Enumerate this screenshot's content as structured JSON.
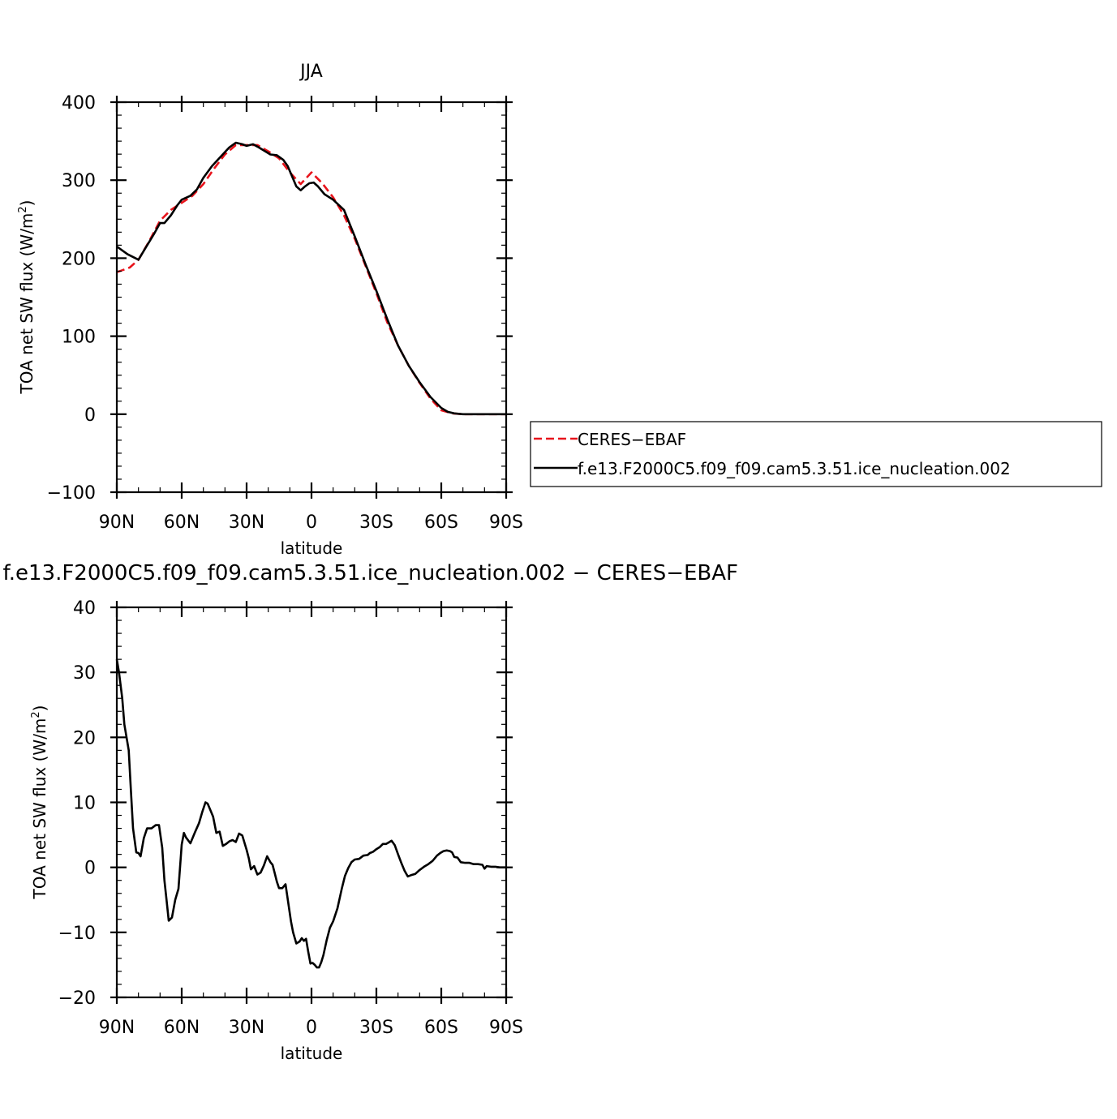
{
  "chart_data": [
    {
      "type": "line",
      "title": "JJA",
      "xlabel": "latitude",
      "ylabel_main": "TOA net SW flux (W/m",
      "ylabel_sup": "2",
      "ylabel_close": ")",
      "xlim": [
        90,
        -90
      ],
      "ylim": [
        -100,
        400
      ],
      "x_ticks": [
        {
          "value": 90,
          "label": "90N"
        },
        {
          "value": 60,
          "label": "60N"
        },
        {
          "value": 30,
          "label": "30N"
        },
        {
          "value": 0,
          "label": "0"
        },
        {
          "value": -30,
          "label": "30S"
        },
        {
          "value": -60,
          "label": "60S"
        },
        {
          "value": -90,
          "label": "90S"
        }
      ],
      "y_ticks": [
        {
          "value": 400,
          "label": "400"
        },
        {
          "value": 300,
          "label": "300"
        },
        {
          "value": 200,
          "label": "200"
        },
        {
          "value": 100,
          "label": "100"
        },
        {
          "value": 0,
          "label": "0"
        },
        {
          "value": -100,
          "label": "−100"
        }
      ],
      "series": [
        {
          "name": "CERES−EBAF",
          "color": "#e8141c",
          "dash": true,
          "x": [
            90,
            84,
            80,
            75,
            70,
            65,
            60,
            55,
            50,
            45,
            40,
            35,
            30,
            25,
            20,
            15,
            10,
            5,
            0,
            -5,
            -10,
            -15,
            -20,
            -25,
            -30,
            -35,
            -40,
            -45,
            -50,
            -55,
            -60,
            -65,
            -70,
            -75,
            -80,
            -85,
            -90
          ],
          "y": [
            182,
            188,
            198,
            222,
            248,
            262,
            271,
            280,
            295,
            315,
            333,
            345,
            345,
            345,
            337,
            328,
            310,
            295,
            310,
            296,
            278,
            255,
            225,
            190,
            155,
            118,
            88,
            62,
            40,
            20,
            5,
            1,
            0,
            0,
            0,
            0,
            0
          ]
        },
        {
          "name": "f.e13.F2000C5.f09_f09.cam5.3.51.ice_nucleation.002",
          "color": "#000000",
          "dash": false,
          "x": [
            90,
            85,
            80,
            77,
            73,
            70,
            68,
            65,
            62,
            60,
            56,
            53,
            50,
            46,
            42,
            38,
            35,
            32,
            30,
            27,
            25,
            22,
            19,
            16,
            13,
            11,
            9,
            7,
            5,
            3,
            1,
            -1,
            -3,
            -6,
            -10,
            -15,
            -20,
            -25,
            -30,
            -35,
            -40,
            -45,
            -50,
            -55,
            -60,
            -63,
            -66,
            -70,
            -75,
            -80,
            -85,
            -90
          ],
          "y": [
            215,
            205,
            198,
            212,
            230,
            245,
            245,
            255,
            268,
            275,
            280,
            288,
            303,
            318,
            330,
            342,
            348,
            346,
            344,
            346,
            343,
            338,
            333,
            332,
            326,
            318,
            305,
            292,
            287,
            292,
            296,
            297,
            292,
            282,
            275,
            262,
            228,
            192,
            158,
            122,
            88,
            62,
            41,
            22,
            8,
            3,
            1,
            0,
            0,
            0,
            0,
            0
          ]
        }
      ],
      "legend": {
        "placement": "right",
        "entries": [
          {
            "label": "CERES−EBAF",
            "color": "#e8141c",
            "dash": true
          },
          {
            "label": "f.e13.F2000C5.f09_f09.cam5.3.51.ice_nucleation.002",
            "color": "#000000",
            "dash": false
          }
        ]
      }
    },
    {
      "type": "line",
      "title": "f.e13.F2000C5.f09_f09.cam5.3.51.ice_nucleation.002 − CERES−EBAF",
      "xlabel": "latitude",
      "ylabel_main": "TOA net SW flux (W/m",
      "ylabel_sup": "2",
      "ylabel_close": ")",
      "xlim": [
        90,
        -90
      ],
      "ylim": [
        -20,
        40
      ],
      "x_ticks": [
        {
          "value": 90,
          "label": "90N"
        },
        {
          "value": 60,
          "label": "60N"
        },
        {
          "value": 30,
          "label": "30N"
        },
        {
          "value": 0,
          "label": "0"
        },
        {
          "value": -30,
          "label": "30S"
        },
        {
          "value": -60,
          "label": "60S"
        },
        {
          "value": -90,
          "label": "90S"
        }
      ],
      "y_ticks": [
        {
          "value": 40,
          "label": "40"
        },
        {
          "value": 30,
          "label": "30"
        },
        {
          "value": 20,
          "label": "20"
        },
        {
          "value": 10,
          "label": "10"
        },
        {
          "value": 0,
          "label": "0"
        },
        {
          "value": -10,
          "label": "−10"
        },
        {
          "value": -20,
          "label": "−20"
        }
      ],
      "series": [
        {
          "name": "f.e13.F2000C5.f09_f09.cam5.3.51.ice_nucleation.002 − CERES−EBAF",
          "color": "#000000",
          "dash": false,
          "x": [
            90,
            89,
            87.5,
            86.5,
            85.5,
            84.5,
            83.5,
            82.5,
            81,
            80,
            79,
            77.5,
            76,
            74,
            72,
            70.5,
            69,
            68,
            67,
            66,
            64.5,
            63,
            61.5,
            60,
            59,
            58,
            56,
            54,
            52,
            50.5,
            49,
            48,
            47,
            45.5,
            44,
            42.5,
            41,
            39.5,
            38,
            36.5,
            35,
            33.5,
            32,
            30,
            29,
            28,
            26.5,
            25,
            23.5,
            22,
            20.5,
            19,
            18,
            17,
            16,
            15,
            13.5,
            12,
            10.5,
            9.5,
            8.5,
            7,
            5.5,
            4.5,
            3.5,
            2.5,
            1.5,
            0.5,
            -0.5,
            -1.5,
            -2.5,
            -3.5,
            -4.5,
            -5.5,
            -7,
            -8.5,
            -10,
            -12,
            -14,
            -15.5,
            -17,
            -18.5,
            -20,
            -22,
            -24,
            -26,
            -27,
            -28.5,
            -30,
            -31.5,
            -33,
            -34.5,
            -35.5,
            -37,
            -38.5,
            -40,
            -41.5,
            -43,
            -44.5,
            -46,
            -48,
            -50,
            -52,
            -54,
            -56,
            -58,
            -59.5,
            -61,
            -62.5,
            -64,
            -65,
            -66,
            -67.5,
            -69,
            -71,
            -73,
            -75,
            -77,
            -79,
            -80,
            -81,
            -83,
            -85,
            -87,
            -90
          ],
          "y": [
            32,
            30,
            26,
            22,
            20,
            18,
            12,
            6,
            2.3,
            2.2,
            1.7,
            4.5,
            6,
            6,
            6.5,
            6.5,
            3,
            -2,
            -5,
            -8.2,
            -7.7,
            -5,
            -3.3,
            3.5,
            5.3,
            4.6,
            3.7,
            5.3,
            6.8,
            8.5,
            10,
            9.8,
            9,
            7.8,
            5.3,
            5.5,
            3.3,
            3.6,
            4,
            4.2,
            3.9,
            5.2,
            4.9,
            2.7,
            1.4,
            -0.3,
            0.2,
            -1.1,
            -0.8,
            0.3,
            1.7,
            0.8,
            0.4,
            -0.9,
            -2.2,
            -3.2,
            -3.2,
            -2.6,
            -6,
            -8.3,
            -10,
            -11.7,
            -11.4,
            -10.9,
            -11.3,
            -11,
            -13,
            -14.8,
            -14.7,
            -15,
            -15.4,
            -15.4,
            -14.6,
            -13.5,
            -11.2,
            -9.3,
            -8.3,
            -6.3,
            -3.3,
            -1.3,
            -0.1,
            0.8,
            1.2,
            1.3,
            1.8,
            1.9,
            2.2,
            2.4,
            2.8,
            3.1,
            3.6,
            3.6,
            3.8,
            4.1,
            3.4,
            2,
            0.7,
            -0.5,
            -1.4,
            -1.2,
            -1,
            -0.4,
            0.1,
            0.5,
            1,
            1.8,
            2.2,
            2.5,
            2.6,
            2.5,
            2.3,
            1.6,
            1.5,
            0.8,
            0.7,
            0.7,
            0.5,
            0.5,
            0.4,
            -0.2,
            0.2,
            0.1,
            0.1,
            0,
            0
          ]
        }
      ]
    }
  ]
}
